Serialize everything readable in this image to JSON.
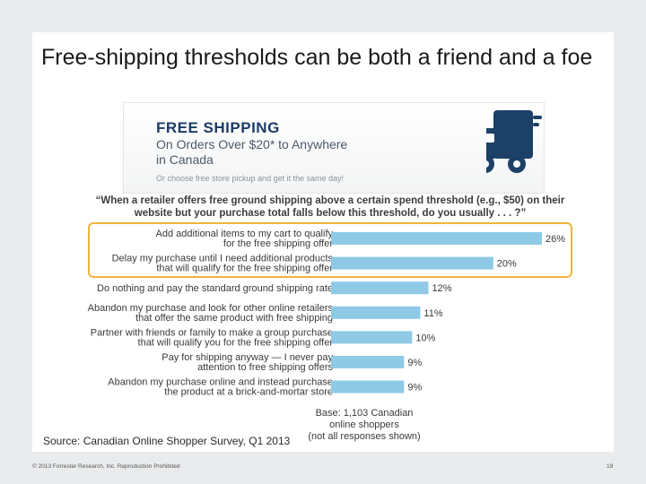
{
  "title": "Free-shipping thresholds can be both a friend and a foe",
  "banner": {
    "heading": "FREE SHIPPING",
    "line1": "On Orders Over $20* to Anywhere",
    "line2": "in Canada",
    "subtext": "Or choose free store pickup and get it the same day!",
    "icon": "delivery-truck-icon"
  },
  "question": "“When a retailer offers free ground shipping above a certain spend threshold (e.g., $50) on their website but your purchase total falls below this threshold, do you usually . . . ?”",
  "chart_data": {
    "type": "bar",
    "orientation": "horizontal",
    "categories": [
      [
        "Add additional items to my cart to qualify",
        "for the free shipping offer"
      ],
      [
        "Delay my purchase until I need additional products",
        "that will qualify for the free shipping offer"
      ],
      [
        "Do nothing and pay the standard ground shipping rate"
      ],
      [
        "Abandon my purchase and look for other online retailers",
        "that offer the same product with free shipping"
      ],
      [
        "Partner with friends or family to make a group purchase",
        "that will qualify you for the free shipping offer"
      ],
      [
        "Pay for shipping anyway — I never pay",
        "attention to free shipping offers"
      ],
      [
        "Abandon my purchase online and instead purchase",
        "the product at a brick-and-mortar store"
      ]
    ],
    "values": [
      26,
      20,
      12,
      11,
      10,
      9,
      9
    ],
    "value_labels": [
      "26%",
      "20%",
      "12%",
      "11%",
      "10%",
      "9%",
      "9%"
    ],
    "highlighted": [
      0,
      1
    ],
    "bar_color": "#8ecae6",
    "highlight_color": "#f0b43c",
    "xlim": [
      0,
      26
    ],
    "base_note": [
      "Base: 1,103 Canadian online shoppers",
      "(not all responses shown)"
    ]
  },
  "source": "Source: Canadian Online Shopper Survey, Q1 2013",
  "footer": {
    "copyright": "© 2013 Forrester Research, Inc. Reproduction Prohibited",
    "page_number": "19"
  }
}
